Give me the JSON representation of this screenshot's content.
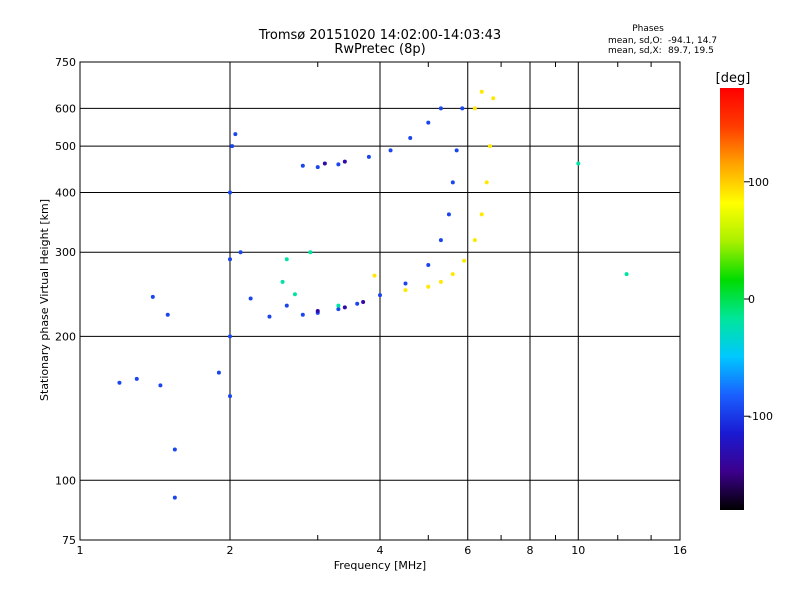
{
  "title": {
    "line1": "Tromsø 20151020 14:02:00-14:03:43",
    "line2": "RwPretec (8p)"
  },
  "stats": {
    "heading": "Phases",
    "o_label": "mean, sd,O:",
    "o_values": "-94.1, 14.7",
    "x_label": "mean, sd,X:",
    "x_values": "89.7, 19.5"
  },
  "colorbar": {
    "unit": "[deg]",
    "ticks": [
      "100",
      "0",
      "-100"
    ],
    "tick_values": [
      100,
      0,
      -100
    ],
    "range": [
      -180,
      180
    ],
    "colormap": [
      "#000000",
      "#3c008c",
      "#1a1ad2",
      "#1a60ff",
      "#00c8ff",
      "#00e69a",
      "#00dc00",
      "#aaf000",
      "#ffff00",
      "#ffa500",
      "#ff3c00",
      "#ff0000"
    ]
  },
  "chart_data": {
    "type": "scatter",
    "title": "Tromsø 20151020 14:02:00-14:03:43",
    "subtitle": "RwPretec (8p)",
    "xlabel": "Frequency [MHz]",
    "ylabel": "Stationary phase Virtual Height [km]",
    "xscale": "log",
    "yscale": "log",
    "xlim": [
      1,
      16
    ],
    "ylim": [
      75,
      750
    ],
    "xticks": [
      1,
      2,
      4,
      6,
      8,
      10,
      16
    ],
    "xtick_labels": [
      "1",
      "2",
      "4",
      "6",
      "8",
      "10",
      "16"
    ],
    "yticks": [
      75,
      100,
      200,
      300,
      400,
      500,
      600,
      750
    ],
    "ytick_labels": [
      "75",
      "100",
      "200",
      "300",
      "400",
      "500",
      "600",
      "750"
    ],
    "grid": true,
    "series": [
      {
        "points": [
          [
            1.2,
            160
          ],
          [
            1.3,
            163
          ],
          [
            1.45,
            158
          ],
          [
            1.9,
            168
          ],
          [
            2.0,
            150
          ],
          [
            2.0,
            200
          ],
          [
            2.0,
            290
          ],
          [
            2.0,
            400
          ],
          [
            2.02,
            500
          ],
          [
            2.05,
            530
          ],
          [
            2.1,
            300
          ],
          [
            2.2,
            240
          ],
          [
            2.4,
            220
          ],
          [
            2.6,
            232
          ],
          [
            2.8,
            222
          ],
          [
            3.0,
            224
          ],
          [
            3.3,
            228
          ],
          [
            3.6,
            234
          ],
          [
            4.0,
            244
          ],
          [
            4.5,
            258
          ],
          [
            5.0,
            282
          ],
          [
            5.3,
            318
          ],
          [
            5.5,
            360
          ],
          [
            5.6,
            420
          ],
          [
            5.7,
            490
          ],
          [
            5.85,
            600
          ],
          [
            2.8,
            455
          ],
          [
            3.0,
            452
          ],
          [
            3.3,
            458
          ],
          [
            3.8,
            475
          ],
          [
            4.2,
            490
          ],
          [
            4.6,
            520
          ],
          [
            5.0,
            560
          ],
          [
            5.3,
            600
          ],
          [
            1.4,
            242
          ],
          [
            1.5,
            222
          ],
          [
            1.55,
            116
          ],
          [
            1.55,
            92
          ]
        ],
        "phase_deg": -94.1
      },
      {
        "points": [
          [
            4.5,
            250
          ],
          [
            5.0,
            254
          ],
          [
            5.3,
            260
          ],
          [
            5.6,
            270
          ],
          [
            5.9,
            288
          ],
          [
            6.2,
            318
          ],
          [
            6.4,
            360
          ],
          [
            6.55,
            420
          ],
          [
            6.65,
            500
          ],
          [
            6.75,
            630
          ],
          [
            6.4,
            650
          ],
          [
            6.2,
            600
          ],
          [
            3.9,
            268
          ]
        ],
        "phase_deg": 89.7
      },
      {
        "points": [
          [
            3.0,
            226
          ],
          [
            3.4,
            230
          ],
          [
            3.7,
            236
          ],
          [
            3.1,
            460
          ],
          [
            3.4,
            464
          ]
        ],
        "phase_deg": -135
      },
      {
        "points": [
          [
            2.55,
            260
          ],
          [
            2.6,
            290
          ],
          [
            2.7,
            245
          ],
          [
            2.9,
            300
          ],
          [
            3.3,
            232
          ],
          [
            10.0,
            460
          ],
          [
            12.5,
            270
          ]
        ],
        "phase_deg": -20
      }
    ]
  }
}
